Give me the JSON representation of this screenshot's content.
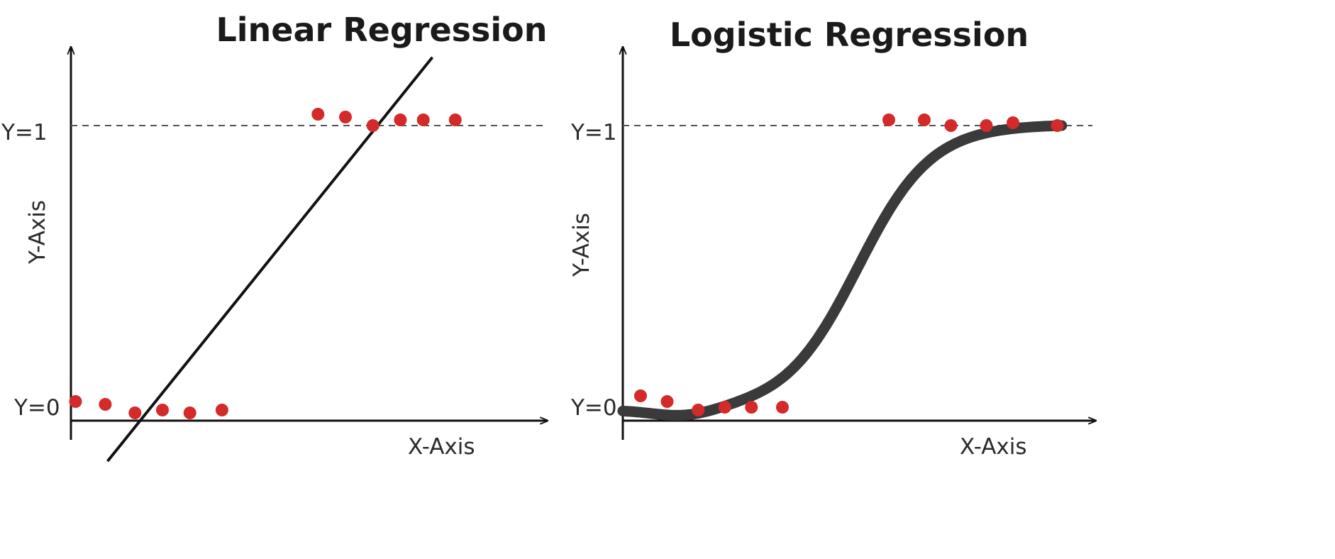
{
  "colors": {
    "point": "#d42a2a",
    "axis": "#111111",
    "curve": "#3a3a3a",
    "guide": "#555555"
  },
  "chart_data": [
    {
      "type": "scatter",
      "title": "Linear Regression",
      "xlabel": "X-Axis",
      "ylabel": "Y-Axis",
      "y_ticks": [
        "Y=0",
        "Y=1"
      ],
      "xlim": [
        0,
        10.5
      ],
      "ylim": [
        -0.3,
        1.4
      ],
      "grid": false,
      "reference_line_y": 1,
      "points": [
        {
          "x": 0.1,
          "y": 0.03
        },
        {
          "x": 0.75,
          "y": 0.02
        },
        {
          "x": 1.4,
          "y": -0.01
        },
        {
          "x": 2.0,
          "y": 0.0
        },
        {
          "x": 2.6,
          "y": -0.01
        },
        {
          "x": 3.3,
          "y": 0.0
        },
        {
          "x": 5.4,
          "y": 1.04
        },
        {
          "x": 6.0,
          "y": 1.03
        },
        {
          "x": 6.6,
          "y": 1.0
        },
        {
          "x": 7.2,
          "y": 1.02
        },
        {
          "x": 7.7,
          "y": 1.02
        },
        {
          "x": 8.4,
          "y": 1.02
        }
      ],
      "fit": {
        "type": "linear",
        "x0": 0.8,
        "y0": -0.18,
        "x1": 7.9,
        "y1": 1.24
      }
    },
    {
      "type": "scatter",
      "title": "Logistic Regression",
      "xlabel": "X-Axis",
      "ylabel": "Y-Axis",
      "y_ticks": [
        "Y=0",
        "Y=1"
      ],
      "xlim": [
        0,
        10.5
      ],
      "ylim": [
        -0.3,
        1.4
      ],
      "grid": false,
      "reference_line_y": 1,
      "points": [
        {
          "x": 0.2,
          "y": 0.05
        },
        {
          "x": 0.5,
          "y": 0.03
        },
        {
          "x": 0.85,
          "y": 0.0
        },
        {
          "x": 1.15,
          "y": 0.01
        },
        {
          "x": 1.45,
          "y": 0.01
        },
        {
          "x": 1.8,
          "y": 0.01
        },
        {
          "x": 3.0,
          "y": 1.02
        },
        {
          "x": 3.4,
          "y": 1.02
        },
        {
          "x": 3.7,
          "y": 1.0
        },
        {
          "x": 4.1,
          "y": 1.0
        },
        {
          "x": 4.4,
          "y": 1.01
        },
        {
          "x": 4.9,
          "y": 1.0
        }
      ],
      "fit": {
        "type": "sigmoid",
        "x_range": [
          0,
          4.95
        ],
        "midpoint": 2.65,
        "steepness": 2.4
      }
    }
  ]
}
